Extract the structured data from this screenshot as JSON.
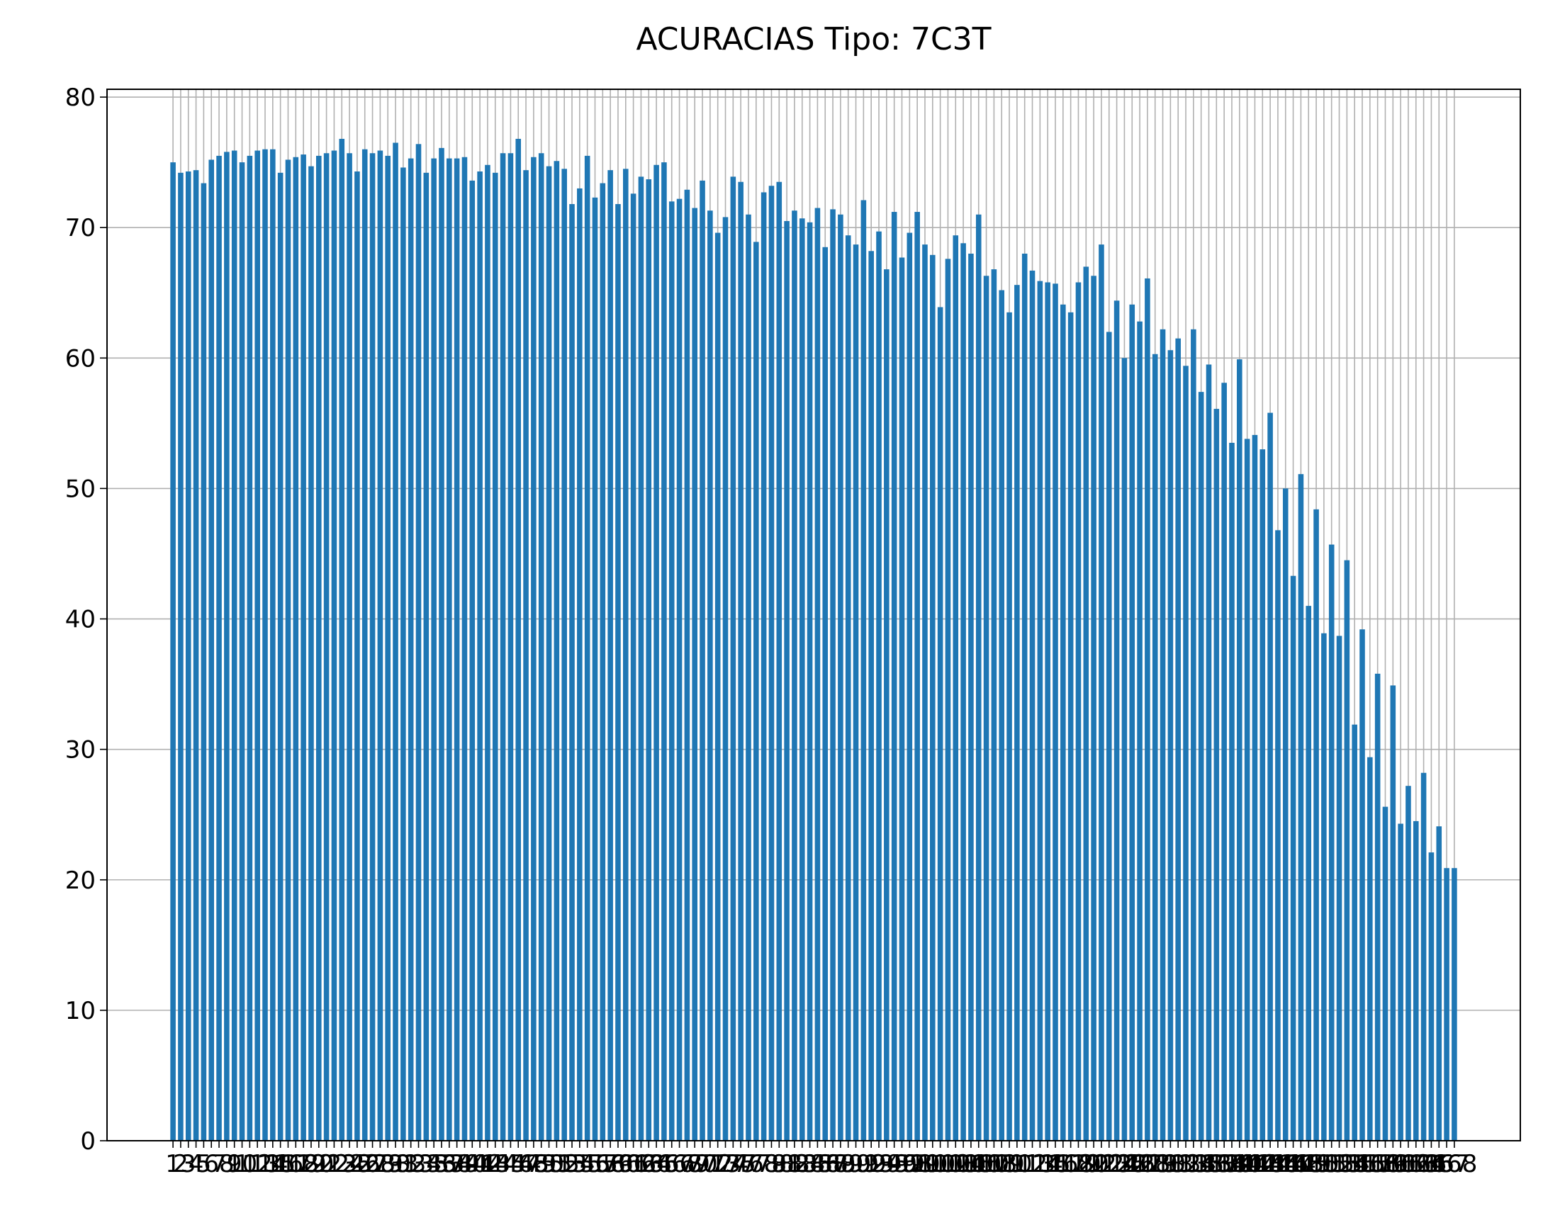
{
  "chart_data": {
    "type": "bar",
    "title": "ACURACIAS Tipo: 7C3T",
    "categories": [
      "1",
      "2",
      "3",
      "4",
      "5",
      "6",
      "7",
      "8",
      "9",
      "10",
      "11",
      "12",
      "13",
      "14",
      "15",
      "16",
      "17",
      "18",
      "19",
      "20",
      "21",
      "22",
      "23",
      "24",
      "25",
      "26",
      "27",
      "28",
      "29",
      "30",
      "31",
      "32",
      "33",
      "34",
      "35",
      "36",
      "37",
      "38",
      "39",
      "40",
      "41",
      "42",
      "43",
      "44",
      "45",
      "46",
      "47",
      "48",
      "49",
      "50",
      "51",
      "52",
      "53",
      "54",
      "55",
      "56",
      "57",
      "58",
      "59",
      "60",
      "61",
      "62",
      "63",
      "64",
      "65",
      "66",
      "67",
      "68",
      "69",
      "70",
      "71",
      "72",
      "73",
      "74",
      "75",
      "76",
      "77",
      "78",
      "79",
      "80",
      "81",
      "82",
      "83",
      "84",
      "85",
      "86",
      "87",
      "88",
      "89",
      "90",
      "91",
      "92",
      "93",
      "94",
      "95",
      "96",
      "97",
      "98",
      "99",
      "100",
      "101",
      "102",
      "103",
      "104",
      "105",
      "106",
      "107",
      "108",
      "109",
      "110",
      "111",
      "112",
      "113",
      "114",
      "115",
      "116",
      "117",
      "118",
      "119",
      "120",
      "121",
      "122",
      "123",
      "124",
      "125",
      "126",
      "127",
      "128",
      "129",
      "130",
      "131",
      "132",
      "133",
      "134",
      "135",
      "136",
      "137",
      "138",
      "139",
      "140",
      "141",
      "142",
      "143",
      "144",
      "145",
      "146",
      "147",
      "148",
      "149",
      "150",
      "151",
      "152",
      "153",
      "154",
      "155",
      "156",
      "157",
      "158",
      "159",
      "160",
      "161",
      "162",
      "163",
      "164",
      "165",
      "166",
      "167",
      "168"
    ],
    "values": [
      75,
      74.2,
      74.3,
      74.4,
      73.4,
      75.2,
      75.5,
      75.8,
      75.9,
      75,
      75.5,
      75.9,
      76,
      76,
      74.2,
      75.2,
      75.4,
      75.6,
      74.7,
      75.5,
      75.7,
      75.9,
      76.8,
      75.7,
      74.3,
      76,
      75.7,
      75.9,
      75.5,
      76.5,
      74.6,
      75.3,
      76.4,
      74.2,
      75.3,
      76.1,
      75.3,
      75.3,
      75.4,
      73.6,
      74.3,
      74.8,
      74.2,
      75.7,
      75.7,
      76.8,
      74.4,
      75.4,
      75.7,
      74.7,
      75.1,
      74.5,
      71.8,
      73,
      75.5,
      72.3,
      73.4,
      74.4,
      71.8,
      74.5,
      72.6,
      73.9,
      73.7,
      74.8,
      75,
      72,
      72.2,
      72.9,
      71.5,
      73.6,
      71.3,
      69.6,
      70.8,
      73.9,
      73.5,
      71,
      68.9,
      72.7,
      73.2,
      73.5,
      70.5,
      71.3,
      70.7,
      70.4,
      71.5,
      68.5,
      71.4,
      71,
      69.4,
      68.7,
      72.1,
      68.2,
      69.7,
      66.8,
      71.2,
      67.7,
      69.6,
      71.2,
      68.7,
      67.9,
      63.9,
      67.6,
      69.4,
      68.8,
      68,
      71,
      66.3,
      66.8,
      65.2,
      63.5,
      65.6,
      68,
      66.7,
      65.9,
      65.8,
      65.7,
      64.1,
      63.5,
      65.8,
      67,
      66.3,
      68.7,
      62,
      64.4,
      60,
      64.1,
      62.8,
      66.1,
      60.3,
      62.2,
      60.6,
      61.5,
      59.4,
      62.2,
      57.4,
      59.5,
      56.1,
      58.1,
      53.5,
      59.9,
      53.8,
      54.1,
      53,
      55.8,
      46.8,
      50,
      43.3,
      51.1,
      41,
      48.4,
      38.9,
      45.7,
      38.7,
      44.5,
      31.9,
      39.2,
      29.4,
      35.8,
      25.6,
      34.9,
      24.3,
      27.2,
      24.5,
      28.2,
      22.1,
      24.1,
      20.9,
      20.9
    ],
    "color": "#1f77b4",
    "ylim": [
      0,
      80.6
    ],
    "yticks": [
      0,
      10,
      20,
      30,
      40,
      50,
      60,
      70,
      80
    ],
    "grid": true
  }
}
